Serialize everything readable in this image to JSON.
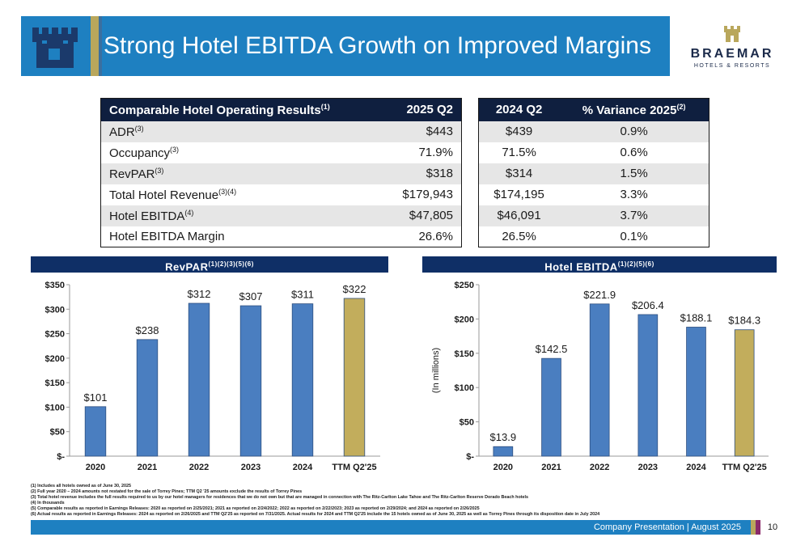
{
  "header": {
    "title": "Strong Hotel EBITDA Growth on Improved Margins",
    "brand_name": "BRAEMAR",
    "brand_sub": "HOTELS & RESORTS",
    "accent_color": "#1e80c1",
    "gold_color": "#b9a75c",
    "logo_icon": "castle-tower-icon"
  },
  "table_main": {
    "header_label": "Comparable Hotel Operating Results",
    "header_sup": "(1)",
    "header_period": "2025 Q2",
    "rows": [
      {
        "label": "ADR",
        "sup": "(3)",
        "value": "$443"
      },
      {
        "label": "Occupancy",
        "sup": "(3)",
        "value": "71.9%"
      },
      {
        "label": "RevPAR",
        "sup": "(3)",
        "value": "$318"
      },
      {
        "label": "Total Hotel Revenue",
        "sup": "(3)(4)",
        "value": "$179,943"
      },
      {
        "label": "Hotel EBITDA",
        "sup": "(4)",
        "value": "$47,805"
      },
      {
        "label": "Hotel EBITDA Margin",
        "sup": "",
        "value": "26.6%"
      }
    ]
  },
  "table_right": {
    "header_period": "2024 Q2",
    "header_variance": "% Variance 2025",
    "header_variance_sup": "(2)",
    "rows": [
      {
        "value": "$439",
        "variance": "0.9%"
      },
      {
        "value": "71.5%",
        "variance": "0.6%"
      },
      {
        "value": "$314",
        "variance": "1.5%"
      },
      {
        "value": "$174,195",
        "variance": "3.3%"
      },
      {
        "value": "$46,091",
        "variance": "3.7%"
      },
      {
        "value": "26.5%",
        "variance": "0.1%"
      }
    ]
  },
  "chart_data": [
    {
      "type": "bar",
      "title": "RevPAR",
      "title_sup": "(1)(2)(3)(5)(6)",
      "categories": [
        "2020",
        "2021",
        "2022",
        "2023",
        "2024",
        "TTM Q2'25"
      ],
      "values": [
        101,
        238,
        312,
        307,
        311,
        322
      ],
      "data_labels": [
        "$101",
        "$238",
        "$312",
        "$307",
        "$311",
        "$322"
      ],
      "yticks": [
        "$-",
        "$50",
        "$100",
        "$150",
        "$200",
        "$250",
        "$300",
        "$350"
      ],
      "ylim": [
        0,
        350
      ],
      "ylabel": "",
      "bar_color": "#4a7ec0",
      "highlight_color": "#c2ad5c",
      "highlight_index": 5
    },
    {
      "type": "bar",
      "title": "Hotel EBITDA",
      "title_sup": "(1)(2)(5)(6)",
      "categories": [
        "2020",
        "2021",
        "2022",
        "2023",
        "2024",
        "TTM Q2'25"
      ],
      "values": [
        13.9,
        142.5,
        221.9,
        206.4,
        188.1,
        184.3
      ],
      "data_labels": [
        "$13.9",
        "$142.5",
        "$221.9",
        "$206.4",
        "$188.1",
        "$184.3"
      ],
      "yticks": [
        "$-",
        "$50",
        "$100",
        "$150",
        "$200",
        "$250"
      ],
      "ylim": [
        0,
        250
      ],
      "ylabel": "(In millions)",
      "bar_color": "#4a7ec0",
      "highlight_color": "#c2ad5c",
      "highlight_index": 5
    }
  ],
  "footnotes": [
    "(1) Includes all hotels owned as of June 30, 2025",
    "(2) Full year 2020 – 2024 amounts not restated for the sale of Torrey Pines; TTM Q2 '25 amounts exclude the results of Torrey Pines",
    "(3) Total hotel revenue includes the full results required to us by our hotel managers for residences that we do not own but that are managed in connection with The Ritz-Carlton Lake Tahoe and The Ritz-Carlton Reserve Dorado Beach hotels",
    "(4) In thousands",
    "(5) Comparable results as reported in Earnings Releases: 2020 as reported on 2/25/2021; 2021 as reported on 2/24/2022; 2022 as reported on 2/22/2023; 2023 as reported on 2/29/2024; and 2024 as reported on 2/26/2025",
    "(6) Actual results as reported in Earnings Releases: 2024 as reported on 2/26/2025 and TTM Q2'25 as reported on 7/31/2025. Actual results for 2024 and TTM Q2'25 include the 15 hotels owned as of June 30, 2025 as well as Torrey Pines through its disposition date in July 2024"
  ],
  "footer": {
    "text": "Company Presentation | August 2025",
    "page_number": "10"
  }
}
